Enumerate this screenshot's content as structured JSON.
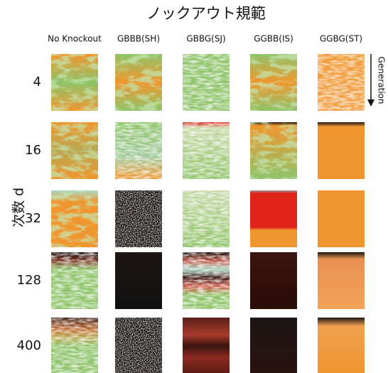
{
  "header": {
    "title": "ノックアウト規範"
  },
  "columns": [
    "No Knockout",
    "GBBB(SH)",
    "GBBG(SJ)",
    "GGBB(IS)",
    "GGBG(ST)"
  ],
  "rows": [
    "4",
    "16",
    "32",
    "128",
    "400"
  ],
  "row_axis_label": "次数 d",
  "arrow_label": "Generation"
}
